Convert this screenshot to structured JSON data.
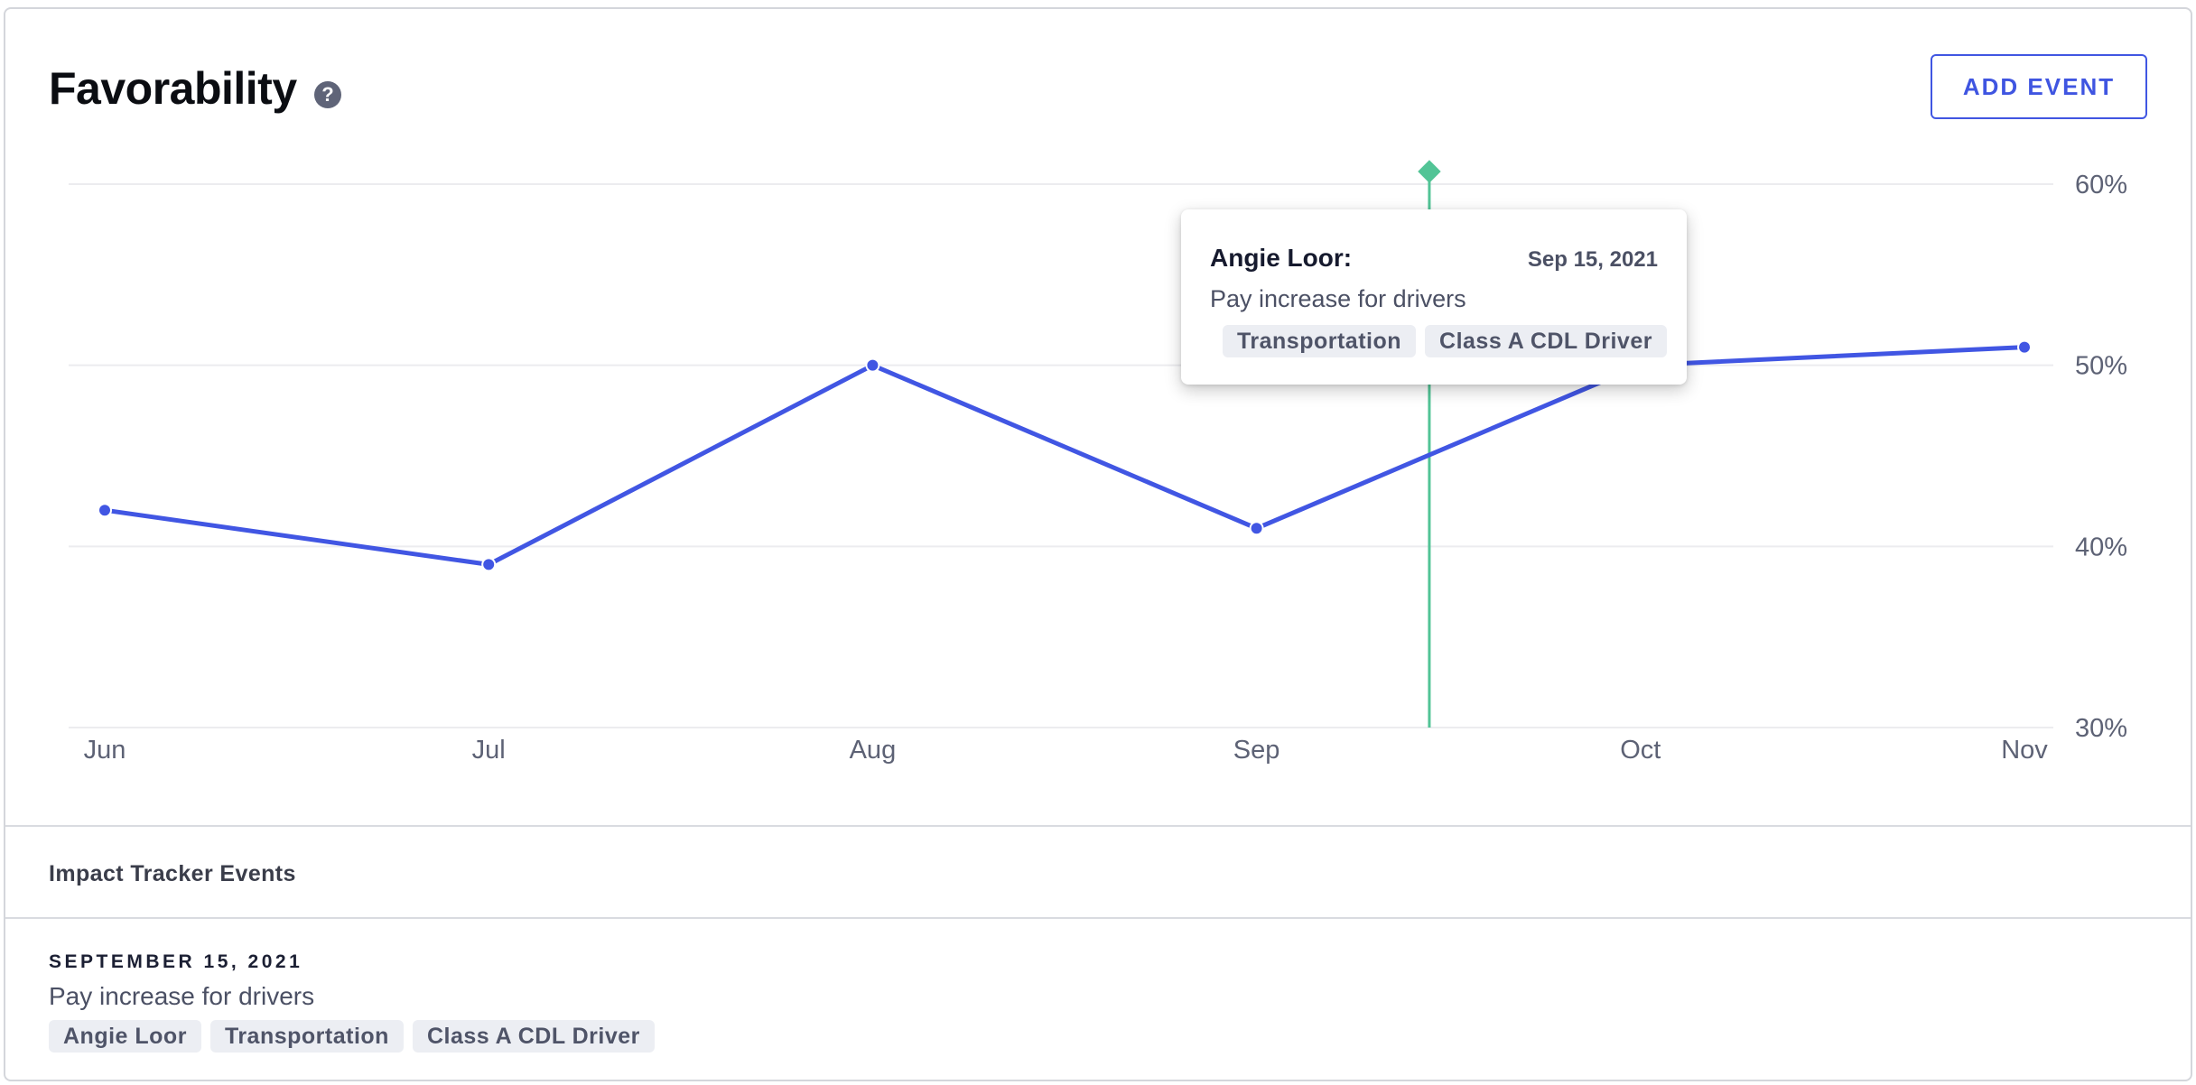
{
  "header": {
    "title": "Favorability",
    "help_icon": "question-circle-icon",
    "add_event_label": "ADD EVENT"
  },
  "colors": {
    "line": "#4156e3",
    "event_marker": "#52c496",
    "grid": "#ececef",
    "axis_text": "#5d6275"
  },
  "chart_data": {
    "type": "line",
    "categories": [
      "Jun",
      "Jul",
      "Aug",
      "Sep",
      "Oct",
      "Nov"
    ],
    "series": [
      {
        "values": [
          42,
          39,
          50,
          41,
          50,
          51
        ]
      }
    ],
    "y_ticks": [
      "60%",
      "50%",
      "40%",
      "30%"
    ],
    "y_tick_values": [
      60,
      50,
      40,
      30
    ],
    "ylim": [
      30,
      60
    ],
    "y_axis_position": "right",
    "grid": true,
    "event_marker": {
      "between": [
        "Sep",
        "Oct"
      ],
      "fraction": 0.45
    }
  },
  "tooltip": {
    "name": "Angie Loor:",
    "date": "Sep 15, 2021",
    "description": "Pay increase for drivers",
    "tags": [
      "Transportation",
      "Class A CDL Driver"
    ]
  },
  "events_section": {
    "label": "Impact Tracker Events",
    "events": [
      {
        "date": "SEPTEMBER 15, 2021",
        "description": "Pay increase for drivers",
        "tags": [
          "Angie Loor",
          "Transportation",
          "Class A CDL Driver"
        ]
      }
    ]
  }
}
